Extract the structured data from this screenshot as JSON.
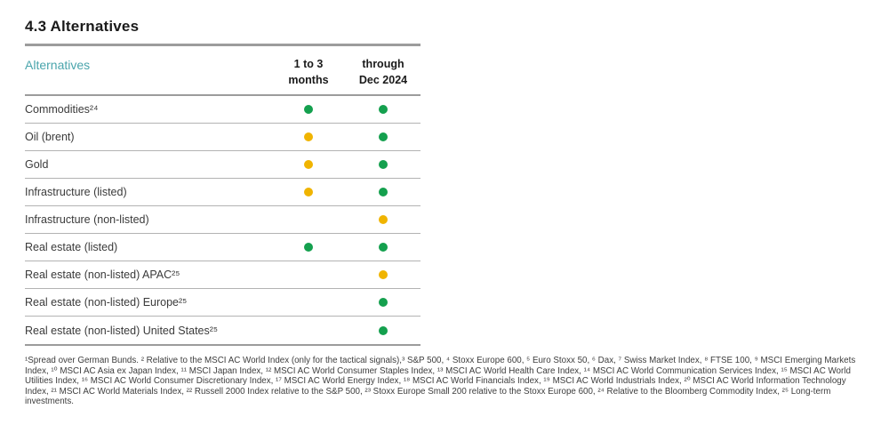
{
  "page": {
    "title": "4.3 Alternatives"
  },
  "colors": {
    "green": "#14a04e",
    "yellow": "#f0b400",
    "teal": "#4aa5ac"
  },
  "table": {
    "header": {
      "label": "Alternatives",
      "col_1to3_months": "1 to 3\nmonths",
      "col_through_dec2024": "through\nDec 2024"
    },
    "rows": [
      {
        "label": "Commodities²⁴",
        "signal_1to3": "green",
        "signal_dec2024": "green"
      },
      {
        "label": "Oil (brent)",
        "signal_1to3": "yellow",
        "signal_dec2024": "green"
      },
      {
        "label": "Gold",
        "signal_1to3": "yellow",
        "signal_dec2024": "green"
      },
      {
        "label": "Infrastructure (listed)",
        "signal_1to3": "yellow",
        "signal_dec2024": "green"
      },
      {
        "label": "Infrastructure (non-listed)",
        "signal_1to3": "none",
        "signal_dec2024": "yellow"
      },
      {
        "label": "Real estate (listed)",
        "signal_1to3": "green",
        "signal_dec2024": "green"
      },
      {
        "label": "Real estate (non-listed) APAC²⁵",
        "signal_1to3": "none",
        "signal_dec2024": "yellow"
      },
      {
        "label": "Real estate (non-listed) Europe²⁵",
        "signal_1to3": "none",
        "signal_dec2024": "green"
      },
      {
        "label": "Real estate (non-listed) United States²⁵",
        "signal_1to3": "none",
        "signal_dec2024": "green"
      }
    ]
  },
  "footnote": "¹Spread over German Bunds. ² Relative to the MSCI AC World Index (only for the tactical signals),³ S&P 500, ⁴ Stoxx Europe 600, ⁵ Euro Stoxx 50, ⁶ Dax, ⁷ Swiss Market Index, ⁸ FTSE 100, ⁹ MSCI Emerging Markets Index, ¹⁰ MSCI AC Asia ex Japan Index, ¹¹ MSCI Japan Index, ¹² MSCI AC World Consumer Staples Index, ¹³ MSCI AC World Health Care Index, ¹⁴ MSCI AC World Communication Services Index, ¹⁵ MSCI AC World Utilities Index, ¹⁶ MSCI AC World Consumer Discretionary Index, ¹⁷ MSCI AC World Energy Index, ¹⁸ MSCI AC World Financials Index, ¹⁹ MSCI AC World Industrials Index, ²⁰ MSCI AC World Information Technology Index, ²¹ MSCI AC World Materials Index, ²² Russell 2000 Index relative to the S&P 500, ²³ Stoxx Europe Small 200 relative to the Stoxx Europe 600, ²⁴ Relative to the Bloomberg Commodity Index, ²⁵ Long-term investments."
}
